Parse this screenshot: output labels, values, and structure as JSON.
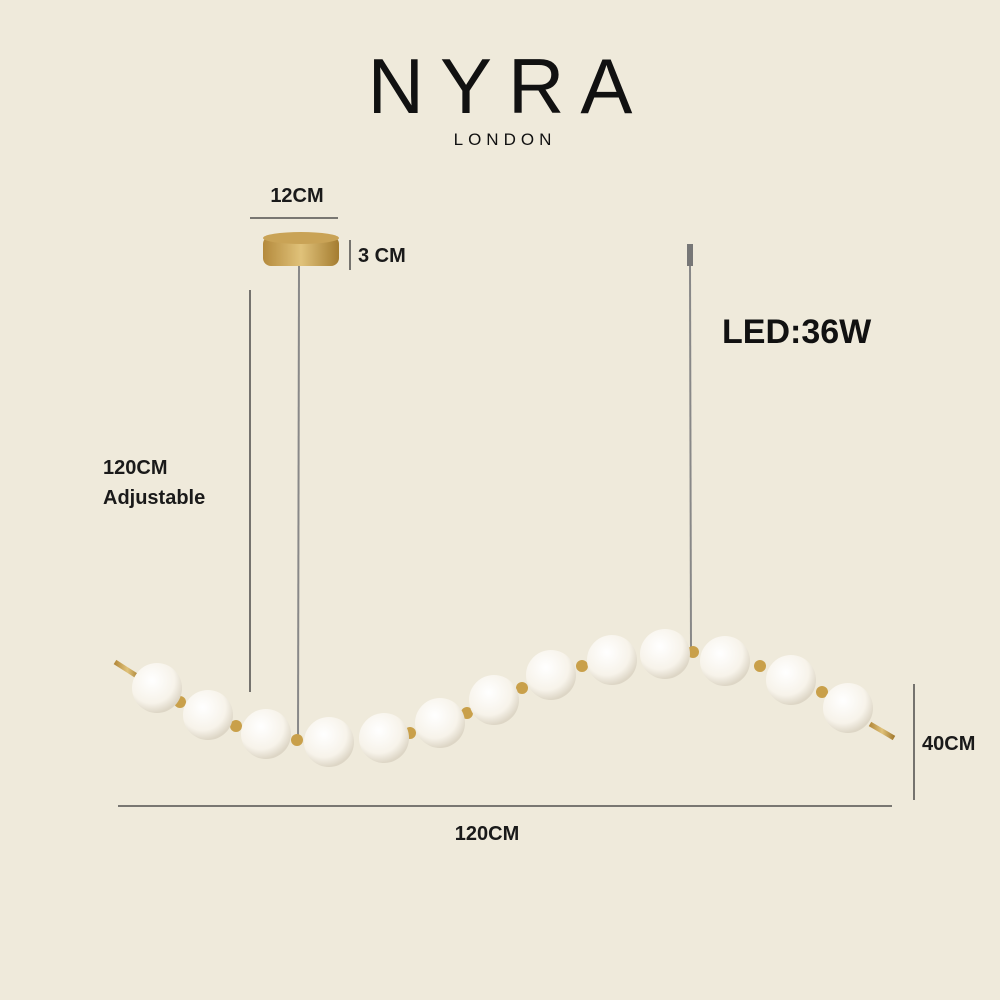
{
  "header": {
    "brand": "NYRA",
    "location": "LONDON"
  },
  "dimensions": {
    "canopy_width": "12CM",
    "canopy_height": "3 CM",
    "power": "LED:36W",
    "drop_length": "120CM",
    "drop_note": "Adjustable",
    "fixture_height": "40CM",
    "fixture_width": "120CM"
  }
}
